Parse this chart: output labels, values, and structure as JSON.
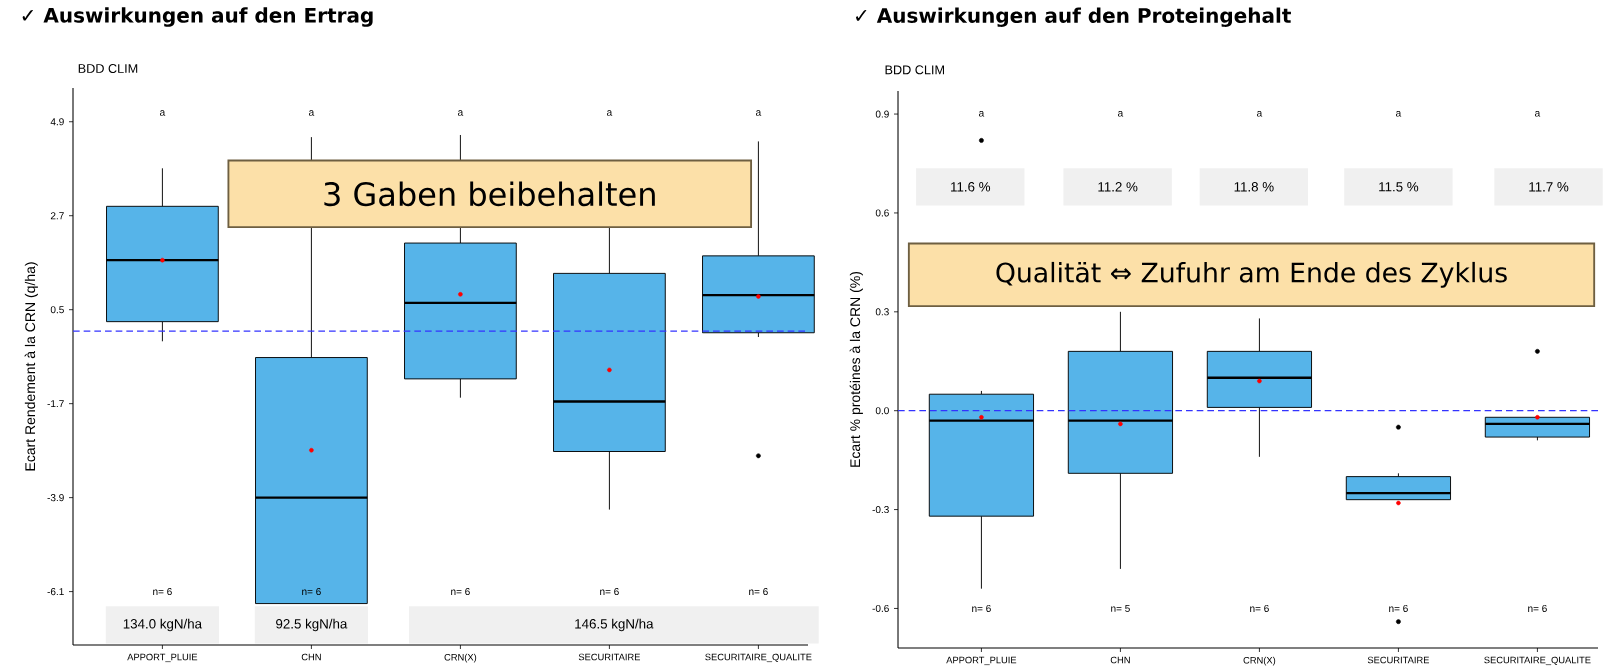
{
  "chart_data": [
    {
      "type": "box",
      "title": "✓  Auswirkungen auf den Ertrag",
      "subtitle": "BDD CLIM",
      "ylabel": "Ecart Rendement à la CRN (q/ha)",
      "categories": [
        "APPORT_PLUIE",
        "CHN",
        "CRN(X)",
        "SECURITAIRE",
        "SECURITAIRE_QUALITE"
      ],
      "color": "#56b4e9",
      "boxes": [
        {
          "low": -0.24,
          "q1": 0.22,
          "median": 1.66,
          "q3": 2.92,
          "high": 3.81,
          "mean": 1.66
        },
        {
          "low": -6.38,
          "q1": -6.38,
          "median": -3.9,
          "q3": -0.62,
          "high": 4.54,
          "mean": -2.79
        },
        {
          "low": -1.56,
          "q1": -1.12,
          "median": 0.66,
          "q3": 2.06,
          "high": 4.59,
          "mean": 0.86
        },
        {
          "low": -4.18,
          "q1": -2.82,
          "median": -1.65,
          "q3": 1.35,
          "high": 2.9,
          "mean": -0.91
        },
        {
          "low": -0.14,
          "q1": -0.04,
          "median": 0.84,
          "q3": 1.76,
          "high": 4.44,
          "mean": 0.81,
          "outliers": [
            -2.92
          ]
        }
      ],
      "ylim": [
        -7.35,
        5.69
      ],
      "yticks": [
        -6.1,
        -3.9,
        -1.7,
        0.5,
        2.7,
        4.9
      ],
      "ref_lines": [
        {
          "axis": "y",
          "value": 0,
          "color": "#3333ff",
          "line_style": "dashed"
        }
      ],
      "annotations": [
        "3 Gaben beibehalten",
        "a",
        "a",
        "a",
        "a",
        "a",
        "n= 6",
        "n= 6",
        "n= 6",
        "n= 6",
        "n= 6",
        "134.0 kgN/ha",
        "92.5 kgN/ha",
        "146.5 kgN/ha"
      ]
    },
    {
      "type": "box",
      "title": "✓  Auswirkungen auf den Proteingehalt",
      "subtitle": "BDD CLIM",
      "ylabel": "Ecart % protéines à la CRN (%)",
      "categories": [
        "APPORT_PLUIE",
        "CHN",
        "CRN(X)",
        "SECURITAIRE",
        "SECURITAIRE_QUALITE"
      ],
      "color": "#56b4e9",
      "boxes": [
        {
          "low": -0.54,
          "q1": -0.32,
          "median": -0.03,
          "q3": 0.05,
          "high": 0.06,
          "mean": -0.02,
          "outliers": [
            0.82
          ]
        },
        {
          "low": -0.48,
          "q1": -0.19,
          "median": -0.03,
          "q3": 0.18,
          "high": 0.3,
          "mean": -0.04
        },
        {
          "low": -0.14,
          "q1": 0.01,
          "median": 0.1,
          "q3": 0.18,
          "high": 0.28,
          "mean": 0.09
        },
        {
          "low": -0.27,
          "q1": -0.27,
          "median": -0.25,
          "q3": -0.2,
          "high": -0.19,
          "mean": -0.28,
          "outliers": [
            -0.05,
            -0.64
          ]
        },
        {
          "low": -0.09,
          "q1": -0.08,
          "median": -0.04,
          "q3": -0.02,
          "high": -0.02,
          "mean": -0.02,
          "outliers": [
            0.18
          ]
        }
      ],
      "ylim": [
        -0.72,
        0.97
      ],
      "yticks": [
        -0.6,
        -0.3,
        {
          "value": 0,
          "label": "0.0"
        },
        0.3,
        0.6,
        0.9
      ],
      "ref_lines": [
        {
          "axis": "y",
          "value": 0,
          "color": "#3333ff",
          "line_style": "dashed"
        }
      ],
      "annotations": [
        "Qualität ⇔ Zufuhr am Ende des Zyklus",
        "a",
        "a",
        "a",
        "a",
        "a",
        "11.6 %",
        "11.2 %",
        "11.8 %",
        "11.5 %",
        "11.7 %",
        "n= 6",
        "n= 5",
        "n= 6",
        "n= 6",
        "n= 6"
      ]
    }
  ]
}
